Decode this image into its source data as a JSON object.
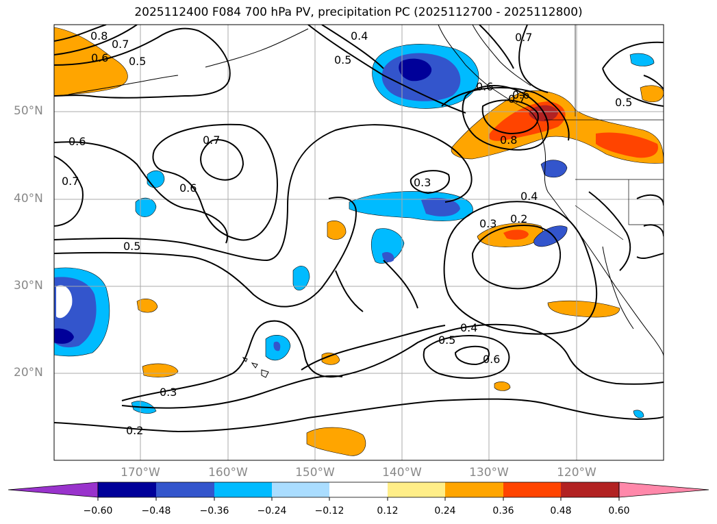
{
  "title": "2025112400 F084 700 hPa PV, precipitation PC (2025112700 - 2025112800)",
  "lat_labels": [
    "50°N",
    "40°N",
    "30°N",
    "20°N"
  ],
  "lon_labels": [
    "170°W",
    "160°W",
    "150°W",
    "140°W",
    "130°W",
    "120°W"
  ],
  "contour_labels": [
    "0.8",
    "0.7",
    "0.6",
    "0.5",
    "0.4",
    "0.5",
    "0.6",
    "0.7",
    "0.7",
    "0.6",
    "0.7",
    "0.8",
    "0.5",
    "0.6",
    "0.7",
    "0.6",
    "0.3",
    "0.4",
    "0.3",
    "0.2",
    "0.5",
    "0.4",
    "0.5",
    "0.6",
    "0.3",
    "0.2"
  ],
  "colorbar": {
    "ticks": [
      "−0.60",
      "−0.48",
      "−0.36",
      "−0.24",
      "−0.12",
      "0.12",
      "0.24",
      "0.36",
      "0.48",
      "0.60"
    ],
    "colors": [
      "#9933cc",
      "#000099",
      "#3355cc",
      "#00bbff",
      "#aaddff",
      "#ffffff",
      "#ffee88",
      "#ffa500",
      "#ff4400",
      "#b22222",
      "#ff88aa"
    ]
  }
}
